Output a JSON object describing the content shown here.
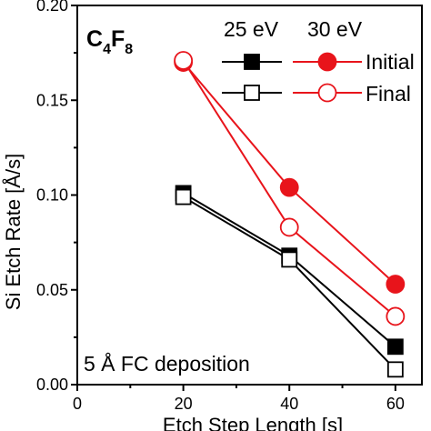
{
  "chart_data": {
    "type": "line",
    "title": "",
    "xlabel": "Etch Step Length [s]",
    "ylabel": "Si Etch Rate [Å/s]",
    "xlim": [
      0,
      65
    ],
    "ylim": [
      0,
      0.2
    ],
    "xticks": [
      0,
      20,
      40,
      60
    ],
    "yticks": [
      0.0,
      0.05,
      0.1,
      0.15,
      0.2
    ],
    "xtick_labels": [
      "0",
      "20",
      "40",
      "60"
    ],
    "ytick_labels": [
      "0.00",
      "0.05",
      "0.10",
      "0.15",
      "0.20"
    ],
    "grid": false,
    "legend_position": "top-right",
    "legend": {
      "column_headers": [
        "25 eV",
        "30 eV"
      ],
      "row_labels": [
        "Initial",
        "Final"
      ]
    },
    "species_label": {
      "main": "C",
      "sub1": "4",
      "mid": "F",
      "sub2": "8"
    },
    "annotation": "5 Å FC deposition",
    "colors": {
      "25 eV": "#000000",
      "30 eV": "#e8141b"
    },
    "series": [
      {
        "energy": "25 eV",
        "state": "Initial",
        "marker": "filled-square",
        "x": [
          20,
          40,
          60
        ],
        "y": [
          0.101,
          0.068,
          0.02
        ]
      },
      {
        "energy": "25 eV",
        "state": "Final",
        "marker": "open-square",
        "x": [
          20,
          40,
          60
        ],
        "y": [
          0.099,
          0.066,
          0.008
        ]
      },
      {
        "energy": "30 eV",
        "state": "Initial",
        "marker": "filled-circle",
        "x": [
          20,
          40,
          60
        ],
        "y": [
          0.17,
          0.104,
          0.053
        ]
      },
      {
        "energy": "30 eV",
        "state": "Final",
        "marker": "open-circle",
        "x": [
          20,
          40,
          60
        ],
        "y": [
          0.171,
          0.083,
          0.036
        ]
      }
    ]
  }
}
